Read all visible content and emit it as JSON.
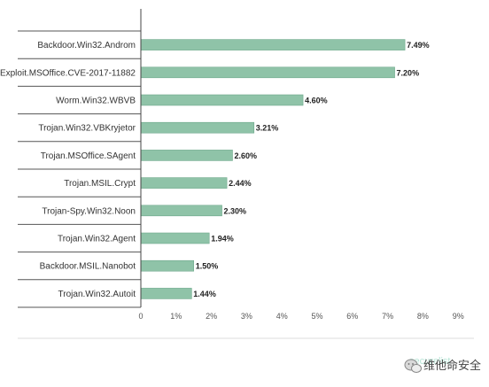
{
  "chart_data": {
    "type": "bar",
    "orientation": "horizontal",
    "title": "",
    "xlabel": "",
    "ylabel": "",
    "categories": [
      "Backdoor.Win32.Androm",
      "Exploit.MSOffice.CVE-2017-11882",
      "Worm.Win32.WBVB",
      "Trojan.Win32.VBKryjetor",
      "Trojan.MSOffice.SAgent",
      "Trojan.MSIL.Crypt",
      "Trojan-Spy.Win32.Noon",
      "Trojan.Win32.Agent",
      "Backdoor.MSIL.Nanobot",
      "Trojan.Win32.Autoit"
    ],
    "values": [
      7.49,
      7.2,
      4.6,
      3.21,
      2.6,
      2.44,
      2.3,
      1.94,
      1.5,
      1.44
    ],
    "value_labels": [
      "7.49%",
      "7.20%",
      "4.60%",
      "3.21%",
      "2.60%",
      "2.44%",
      "2.30%",
      "1.94%",
      "1.50%",
      "1.44%"
    ],
    "xlim": [
      0,
      9
    ],
    "x_ticks": [
      "0",
      "1%",
      "2%",
      "3%",
      "4%",
      "5%",
      "6%",
      "7%",
      "8%",
      "9%"
    ],
    "grid": false,
    "bar_color": "#8fc3a8",
    "bar_edge_color": "#6fa98c"
  },
  "watermark": {
    "text": "维他命安全",
    "icon": "wechat-icon",
    "logo_fragment": "securelist"
  }
}
